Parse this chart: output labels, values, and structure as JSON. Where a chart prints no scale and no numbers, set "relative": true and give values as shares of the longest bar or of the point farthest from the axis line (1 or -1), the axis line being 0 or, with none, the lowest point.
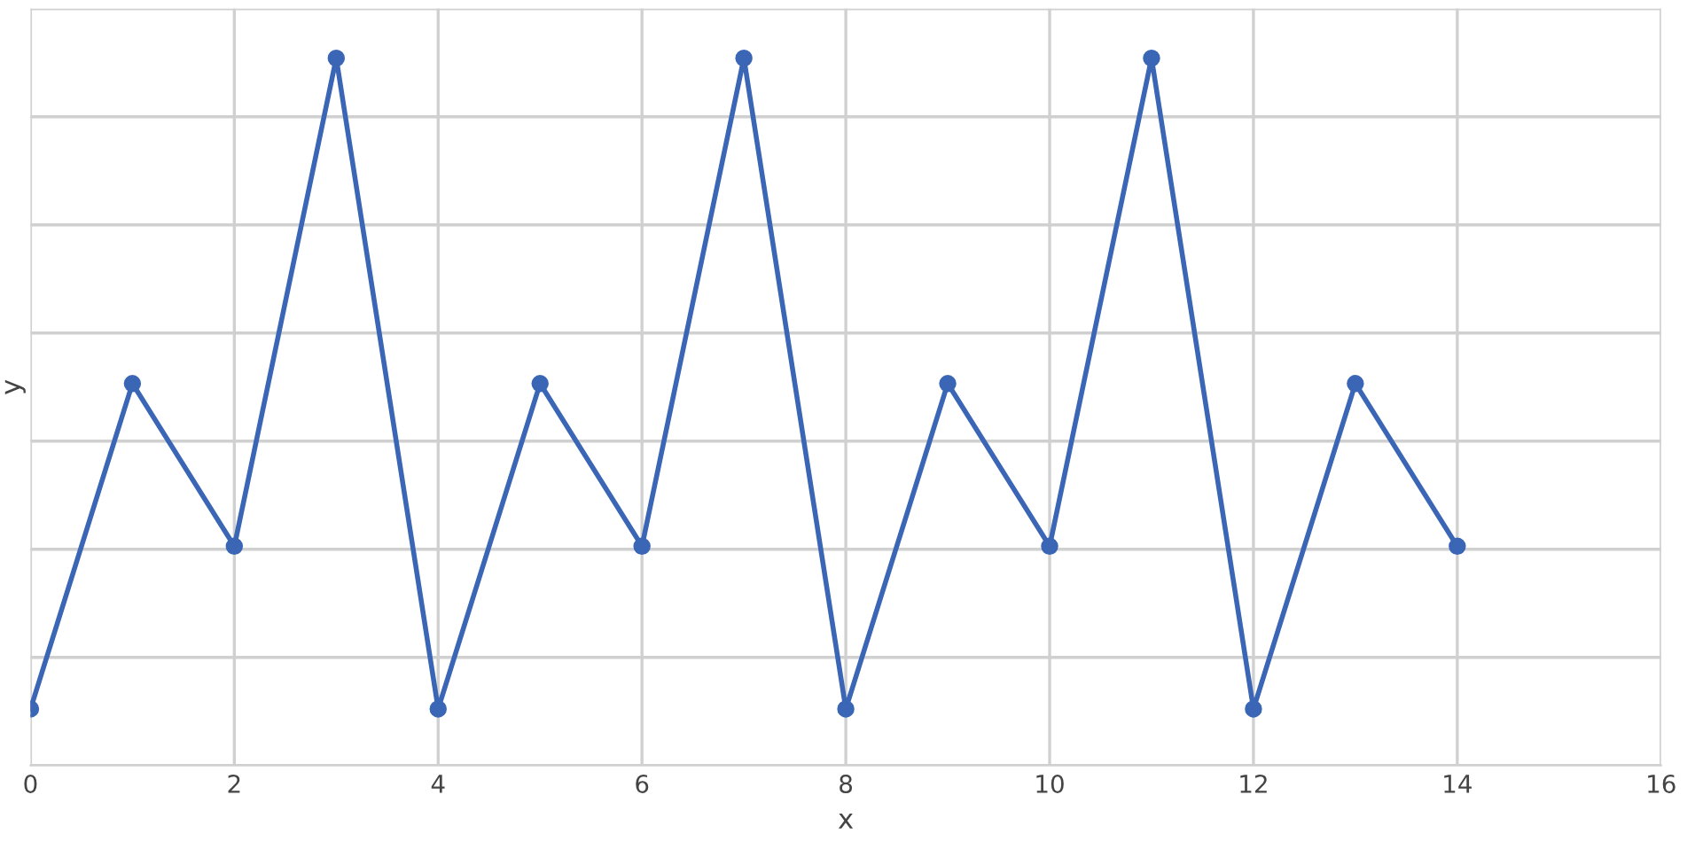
{
  "chart_data": {
    "type": "line",
    "xlabel": "x",
    "ylabel": "y",
    "relative": true,
    "x": [
      0,
      1,
      2,
      3,
      4,
      5,
      6,
      7,
      8,
      9,
      10,
      11,
      12,
      13,
      14
    ],
    "series": [
      {
        "color": "#3a66b5",
        "values": [
          0.08,
          0.54,
          0.31,
          1,
          0.08,
          0.54,
          0.31,
          1,
          0.08,
          0.54,
          0.31,
          1,
          0.08,
          0.54,
          0.31
        ]
      }
    ],
    "xlim": [
      0,
      16
    ],
    "xticks": [
      0,
      2,
      4,
      6,
      8,
      10,
      12,
      14,
      16
    ],
    "grid": true,
    "marker": "circle",
    "line_style": "solid",
    "tick_labels": "x",
    "legend": false
  }
}
